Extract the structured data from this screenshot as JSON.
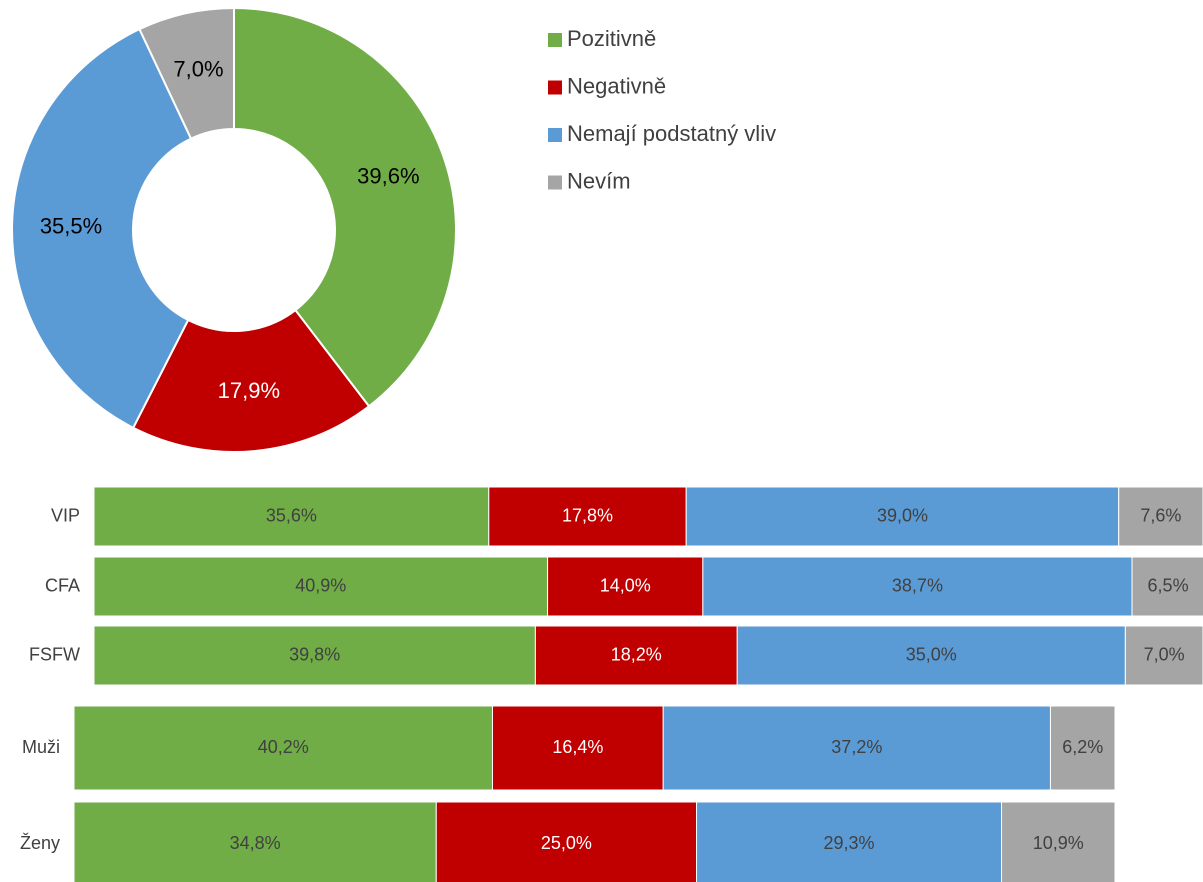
{
  "chart_data": [
    {
      "type": "donut",
      "categories": [
        "Pozitivně",
        "Negativně",
        "Nemají podstatný vliv",
        "Nevím"
      ],
      "values": [
        39.6,
        17.9,
        35.5,
        7.0
      ],
      "value_labels": [
        "39,6%",
        "17,9%",
        "35,5%",
        "7,0%"
      ],
      "colors": [
        "#70ad47",
        "#c00000",
        "#5b9bd5",
        "#a5a5a5"
      ],
      "label_colors": [
        "#000000",
        "#ffffff",
        "#000000",
        "#000000"
      ],
      "legend": "right"
    },
    {
      "type": "stacked-bar",
      "orientation": "horizontal",
      "categories": [
        "VIP",
        "CFA",
        "FSFW"
      ],
      "xlim": [
        0,
        100
      ],
      "series": [
        {
          "color": "#70ad47",
          "label_color": "#404040",
          "values": [
            35.6,
            40.9,
            39.8
          ],
          "value_labels": [
            "35,6%",
            "40,9%",
            "39,8%"
          ]
        },
        {
          "color": "#c00000",
          "label_color": "#ffffff",
          "values": [
            17.8,
            14.0,
            18.2
          ],
          "value_labels": [
            "17,8%",
            "14,0%",
            "18,2%"
          ]
        },
        {
          "color": "#5b9bd5",
          "label_color": "#404040",
          "values": [
            39.0,
            38.7,
            35.0
          ],
          "value_labels": [
            "39,0%",
            "38,7%",
            "35,0%"
          ]
        },
        {
          "color": "#a5a5a5",
          "label_color": "#404040",
          "values": [
            7.6,
            6.5,
            7.0
          ],
          "value_labels": [
            "7,6%",
            "6,5%",
            "7,0%"
          ]
        }
      ]
    },
    {
      "type": "stacked-bar",
      "orientation": "horizontal",
      "categories": [
        "Muži",
        "Ženy"
      ],
      "xlim": [
        0,
        100
      ],
      "series": [
        {
          "color": "#70ad47",
          "label_color": "#404040",
          "values": [
            40.2,
            34.8
          ],
          "value_labels": [
            "40,2%",
            "34,8%"
          ]
        },
        {
          "color": "#c00000",
          "label_color": "#ffffff",
          "values": [
            16.4,
            25.0
          ],
          "value_labels": [
            "16,4%",
            "25,0%"
          ]
        },
        {
          "color": "#5b9bd5",
          "label_color": "#404040",
          "values": [
            37.2,
            29.3
          ],
          "value_labels": [
            "37,2%",
            "29,3%"
          ]
        },
        {
          "color": "#a5a5a5",
          "label_color": "#404040",
          "values": [
            6.2,
            10.9
          ],
          "value_labels": [
            "6,2%",
            "10,9%"
          ]
        }
      ]
    }
  ]
}
